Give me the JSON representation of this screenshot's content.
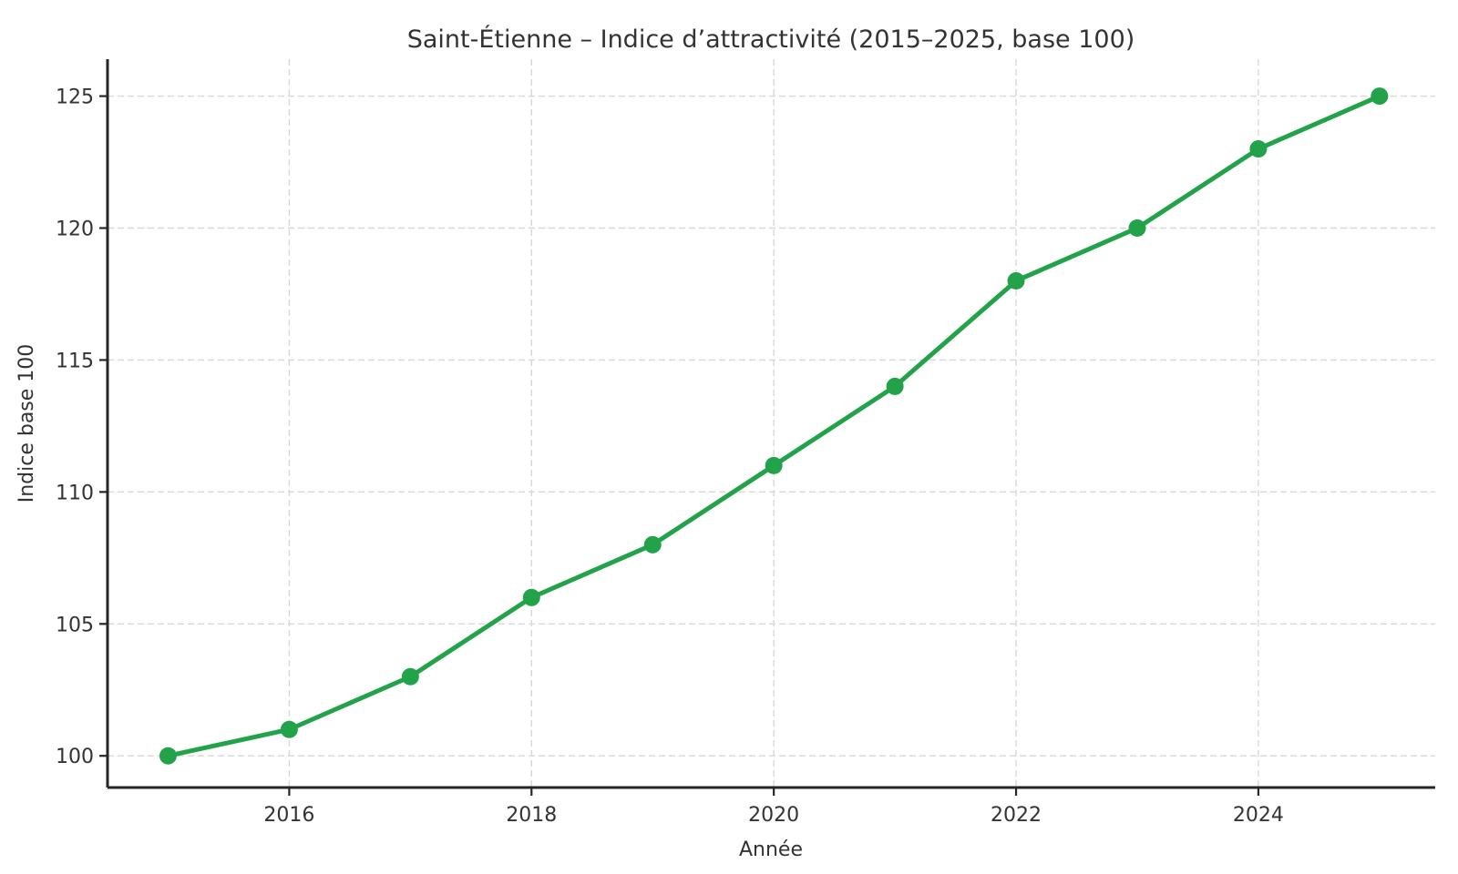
{
  "chart_data": {
    "type": "line",
    "title": "Saint-Étienne – Indice d’attractivité (2015–2025, base 100)",
    "xlabel": "Année",
    "ylabel": "Indice base 100",
    "x": [
      2015,
      2016,
      2017,
      2018,
      2019,
      2020,
      2021,
      2022,
      2023,
      2024,
      2025
    ],
    "values": [
      100,
      101,
      103,
      106,
      108,
      111,
      114,
      118,
      120,
      123,
      125
    ],
    "x_ticks": [
      2016,
      2018,
      2020,
      2022,
      2024
    ],
    "y_ticks": [
      100,
      105,
      110,
      115,
      120,
      125
    ],
    "xlim": [
      2014.5,
      2025.46
    ],
    "ylim": [
      98.8,
      126.4
    ],
    "grid": true,
    "legend": false,
    "marker": "circle",
    "colors": {
      "line": "#22a34a",
      "marker": "#22a34a",
      "grid": "#d8d8d8",
      "axis": "#262626",
      "text": "#333333",
      "background": "#ffffff"
    }
  }
}
